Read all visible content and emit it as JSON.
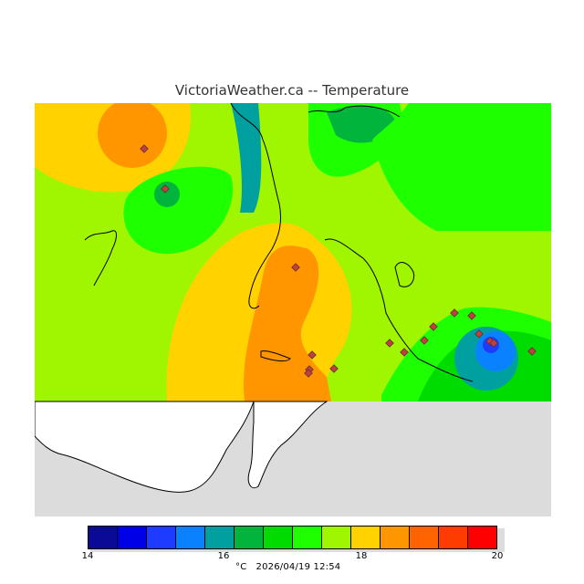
{
  "title": "VictoriaWeather.ca -- Temperature",
  "legend": {
    "colors": [
      "#0a0a96",
      "#0000e6",
      "#1e3cff",
      "#0a82ff",
      "#00a0a0",
      "#00b43c",
      "#00dc00",
      "#1eff00",
      "#a0f500",
      "#ffd200",
      "#ff9600",
      "#ff6400",
      "#ff3c00",
      "#ff0000"
    ],
    "tick_labels": [
      "14",
      "16",
      "18",
      "20"
    ]
  },
  "unit": "°C",
  "timestamp": "2026/04/19 12:54",
  "colors": {
    "no_data": "#dcdcdc",
    "station_marker": "#c04040"
  }
}
